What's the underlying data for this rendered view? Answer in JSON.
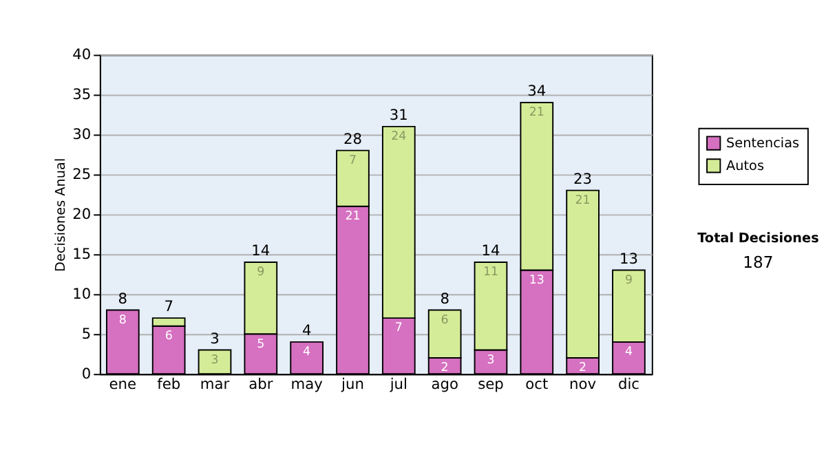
{
  "chart_data": {
    "type": "bar",
    "stacked": true,
    "ylabel": "Decisiones Anual",
    "categories": [
      "ene",
      "feb",
      "mar",
      "abr",
      "may",
      "jun",
      "jul",
      "ago",
      "sep",
      "oct",
      "nov",
      "dic"
    ],
    "series": [
      {
        "name": "Sentencias",
        "color": "#d670c0",
        "values": [
          8,
          6,
          0,
          5,
          4,
          21,
          7,
          2,
          3,
          13,
          2,
          4
        ],
        "value_labels": [
          "8",
          "6",
          null,
          "5",
          "4",
          "21",
          "7",
          "2",
          "3",
          "13",
          "2",
          "4"
        ]
      },
      {
        "name": "Autos",
        "color": "#d4ec98",
        "values": [
          0,
          1,
          3,
          9,
          0,
          7,
          24,
          6,
          11,
          21,
          21,
          9
        ],
        "value_labels": [
          null,
          null,
          "3",
          "9",
          null,
          "7",
          "24",
          "6",
          "11",
          "21",
          "21",
          "9"
        ]
      }
    ],
    "totals": [
      "8",
      "7",
      "3",
      "14",
      "4",
      "28",
      "31",
      "8",
      "14",
      "34",
      "23",
      "13"
    ],
    "ylim": [
      0,
      40
    ],
    "yticks": [
      0,
      5,
      10,
      15,
      20,
      25,
      30,
      35,
      40
    ],
    "grid": "y",
    "legend": "right",
    "annotations": [
      "Total Decisiones",
      "187"
    ]
  }
}
